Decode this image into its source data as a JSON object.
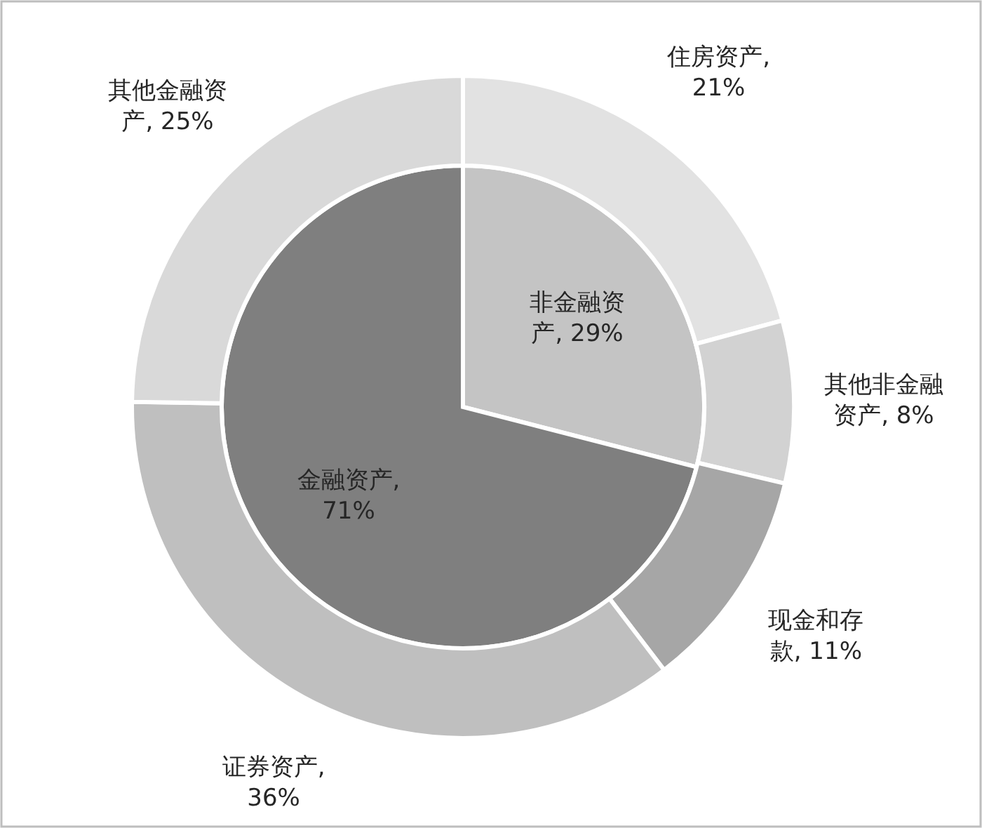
{
  "chart_data": [
    {
      "type": "pie",
      "categories": [
        "非金融资产",
        "金融资产"
      ],
      "values": [
        29,
        71
      ],
      "value_labels": [
        ", 29%",
        ", 71%"
      ],
      "colors": [
        "#c4c4c4",
        "#7f7f7f"
      ]
    },
    {
      "type": "donut",
      "categories": [
        "住房资产",
        "其他非金融资产",
        "现金和存款",
        "证券资产",
        "其他金融资产"
      ],
      "values": [
        21,
        8,
        11,
        36,
        25
      ],
      "value_labels": [
        ", 21%",
        ", 8%",
        ", 11%",
        ", 36%",
        ", 25%"
      ],
      "colors": [
        "#e2e2e2",
        "#d2d2d2",
        "#a6a6a6",
        "#bfbfbf",
        "#d9d9d9"
      ]
    }
  ]
}
